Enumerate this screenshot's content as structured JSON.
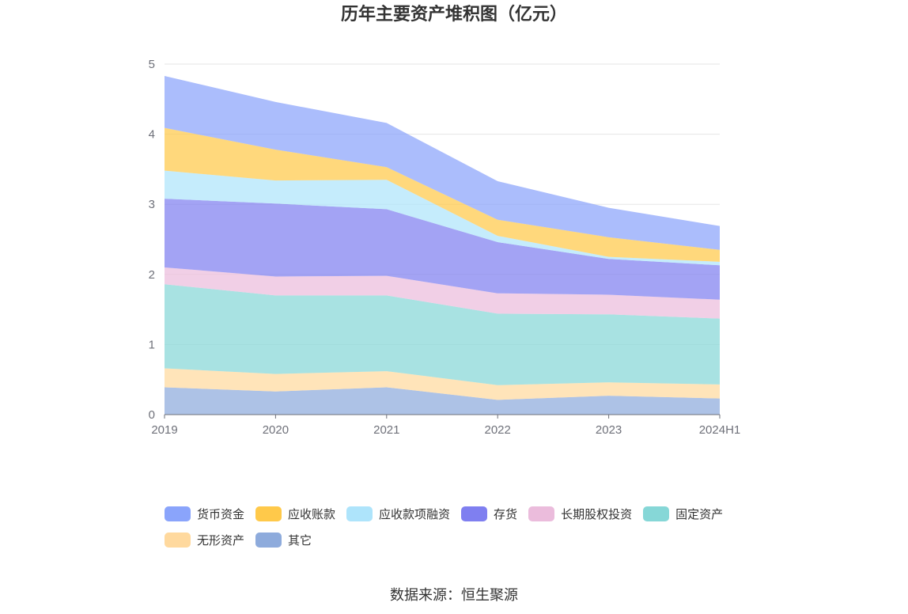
{
  "chart_data": {
    "type": "area",
    "stacked": true,
    "title": "历年主要资产堆积图（亿元）",
    "categories": [
      "2019",
      "2020",
      "2021",
      "2022",
      "2023",
      "2024H1"
    ],
    "ylim": [
      0,
      5
    ],
    "yticks": [
      "0",
      "1",
      "2",
      "3",
      "4",
      "5"
    ],
    "grid": true,
    "legend_position": "bottom",
    "series": [
      {
        "name": "其它",
        "color": "#8eabdc",
        "values": [
          0.39,
          0.33,
          0.39,
          0.21,
          0.27,
          0.23
        ]
      },
      {
        "name": "无形资产",
        "color": "#ffd99e",
        "values": [
          0.27,
          0.25,
          0.23,
          0.21,
          0.19,
          0.2
        ]
      },
      {
        "name": "固定资产",
        "color": "#86d7d7",
        "values": [
          1.2,
          1.12,
          1.08,
          1.02,
          0.97,
          0.94
        ]
      },
      {
        "name": "长期股权投资",
        "color": "#ebbcdc",
        "values": [
          0.24,
          0.27,
          0.28,
          0.29,
          0.28,
          0.27
        ]
      },
      {
        "name": "存货",
        "color": "#7f7ff0",
        "values": [
          0.98,
          1.04,
          0.95,
          0.73,
          0.51,
          0.49
        ]
      },
      {
        "name": "应收款项融资",
        "color": "#aee4fb",
        "values": [
          0.4,
          0.33,
          0.42,
          0.09,
          0.03,
          0.05
        ]
      },
      {
        "name": "应收账款",
        "color": "#ffc94a",
        "values": [
          0.61,
          0.44,
          0.18,
          0.23,
          0.28,
          0.17
        ]
      },
      {
        "name": "货币资金",
        "color": "#8aa4fb",
        "values": [
          0.74,
          0.68,
          0.63,
          0.55,
          0.42,
          0.34
        ]
      }
    ]
  },
  "legend_order": [
    "货币资金",
    "应收账款",
    "应收款项融资",
    "存货",
    "长期股权投资",
    "固定资产",
    "无形资产",
    "其它"
  ],
  "source": "数据来源：恒生聚源"
}
